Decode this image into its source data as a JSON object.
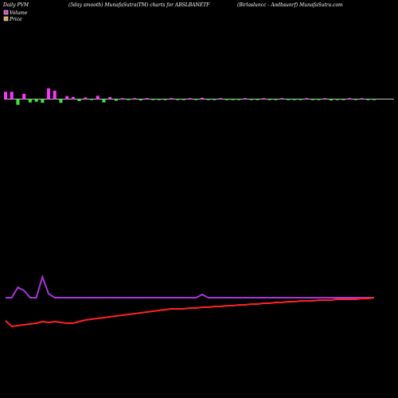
{
  "header": {
    "left": "Daily PVM",
    "center": "(5day smooth) MunafaSutra(TM) charts for ABSLBANETF",
    "right": "(Birlasluncc - Aodbsunrf) MunafaSutra.com"
  },
  "legend": [
    {
      "label": "Volume",
      "color": "#cc44cc"
    },
    {
      "label": "Price",
      "color": "#e8a040"
    }
  ],
  "colors": {
    "background": "#000000",
    "baseline": "#ffffff",
    "volume_up": "#ff33ff",
    "volume_down": "#33ee33",
    "price_line": "#ff2222",
    "volume_line": "#aa33dd"
  },
  "chart_data": [
    {
      "type": "bar",
      "name": "volume-bars",
      "n": 61,
      "values": [
        2.2,
        2.2,
        1.7,
        1.6,
        1.0,
        0.8,
        1.1,
        3.2,
        2.5,
        1.1,
        0.9,
        0.6,
        0.6,
        0.5,
        0.2,
        1.0,
        1.0,
        0.6,
        0.5,
        0.2,
        0.2,
        0.3,
        0.4,
        0.3,
        0.2,
        0.2,
        0.3,
        0.3,
        0.2,
        0.2,
        0.2,
        0.2,
        0.4,
        0.2,
        0.2,
        0.2,
        0.2,
        0.2,
        0.2,
        0.3,
        0.2,
        0.2,
        0.2,
        0.2,
        0.3,
        0.2,
        0.2,
        0.2,
        0.2,
        0.2,
        0.3,
        0.2,
        0.2,
        0.4,
        0.2,
        0.2,
        0.2,
        0.2,
        0.2,
        0.3,
        0.2
      ],
      "up": [
        true,
        true,
        false,
        true,
        false,
        false,
        false,
        true,
        true,
        false,
        true,
        true,
        false,
        true,
        false,
        true,
        false,
        true,
        false,
        true,
        false,
        true,
        false,
        true,
        false,
        false,
        false,
        true,
        false,
        false,
        true,
        false,
        true,
        false,
        false,
        true,
        false,
        false,
        false,
        true,
        false,
        false,
        true,
        false,
        false,
        true,
        false,
        false,
        false,
        true,
        false,
        false,
        true,
        false,
        false,
        false,
        true,
        false,
        true,
        false,
        false
      ]
    },
    {
      "type": "line",
      "name": "volume-line",
      "values": [
        1.0,
        1.0,
        2.3,
        1.9,
        1.0,
        1.0,
        3.6,
        1.5,
        1.0,
        1.0,
        1.0,
        1.0,
        1.0,
        1.0,
        1.0,
        1.0,
        1.0,
        1.0,
        1.0,
        1.0,
        1.0,
        1.0,
        1.0,
        1.0,
        1.0,
        1.0,
        1.0,
        1.0,
        1.0,
        1.0,
        1.0,
        1.0,
        1.4,
        1.0,
        1.0,
        1.0,
        1.0,
        1.0,
        1.0,
        1.0,
        1.0,
        1.0,
        1.0,
        1.0,
        1.0,
        1.0,
        1.0,
        1.0,
        1.0,
        1.0,
        1.0,
        1.0,
        1.0,
        1.0,
        1.0,
        1.0,
        1.0,
        1.0,
        1.0,
        1.0,
        1.0
      ]
    },
    {
      "type": "line",
      "name": "price-line",
      "values": [
        1.0,
        0.3,
        0.4,
        0.5,
        0.6,
        0.7,
        0.9,
        0.8,
        0.9,
        0.8,
        0.7,
        0.7,
        0.9,
        1.1,
        1.2,
        1.3,
        1.4,
        1.5,
        1.6,
        1.7,
        1.8,
        1.9,
        2.0,
        2.1,
        2.2,
        2.3,
        2.4,
        2.5,
        2.5,
        2.5,
        2.6,
        2.6,
        2.7,
        2.7,
        2.8,
        2.8,
        2.9,
        2.9,
        3.0,
        3.0,
        3.1,
        3.1,
        3.2,
        3.2,
        3.3,
        3.3,
        3.4,
        3.4,
        3.5,
        3.5,
        3.5,
        3.6,
        3.6,
        3.6,
        3.7,
        3.7,
        3.7,
        3.7,
        3.8,
        3.8,
        3.9
      ]
    }
  ]
}
